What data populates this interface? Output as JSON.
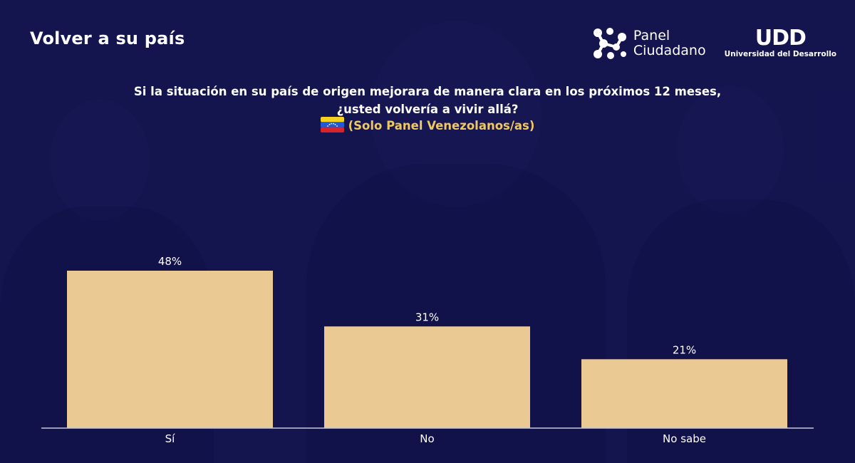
{
  "header": {
    "title": "Volver a su país",
    "logo_panel_line1": "Panel",
    "logo_panel_line2": "Ciudadano",
    "logo_udd_mark": "UDD",
    "logo_udd_text": "Universidad del Desarrollo"
  },
  "question": {
    "line1": "Si la situación en su país de origen mejorara de manera clara en los próximos 12 meses,",
    "line2": "¿usted volvería a vivir allá?",
    "subset": "(Solo Panel Venezolanos/as)"
  },
  "colors": {
    "bar": "#ebc993",
    "background": "#17174f",
    "subset_text": "#f0c862",
    "text": "#ffffff"
  },
  "chart_data": {
    "type": "bar",
    "categories": [
      "Sí",
      "No",
      "No sabe"
    ],
    "values": [
      48,
      31,
      21
    ],
    "value_labels": [
      "48%",
      "31%",
      "21%"
    ],
    "unit": "%",
    "title": "",
    "xlabel": "",
    "ylabel": "",
    "ylim": [
      0,
      48
    ],
    "grid": false,
    "legend": "none"
  }
}
